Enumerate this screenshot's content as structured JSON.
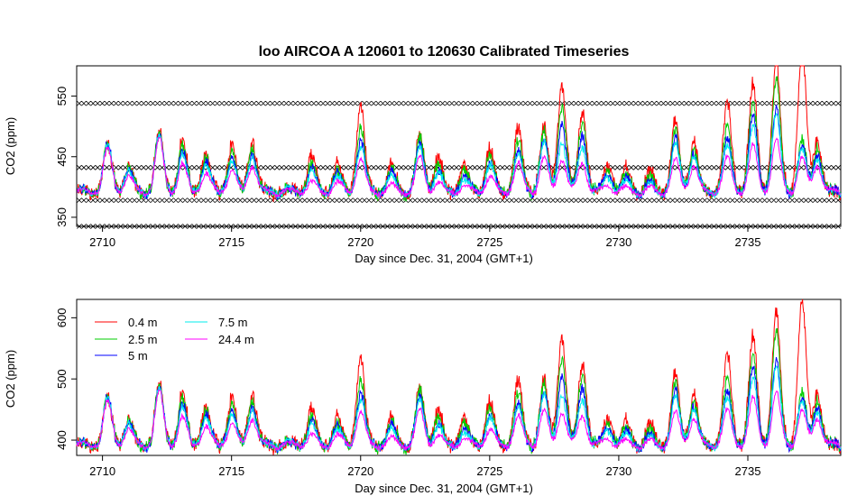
{
  "chart_data": [
    {
      "type": "line",
      "title": "loo   AIRCOA  A    120601  to  120630   Calibrated Timeseries",
      "xlabel": "Day since Dec. 31, 2004 (GMT+1)",
      "ylabel": "CO2 (ppm)",
      "xlim": [
        2709.0,
        2738.6
      ],
      "ylim": [
        335,
        600
      ],
      "xticks": [
        2710,
        2715,
        2720,
        2725,
        2730,
        2735
      ],
      "yticks": [
        350,
        450,
        550
      ],
      "ytick_labels": [
        "350",
        "450",
        "550"
      ],
      "calibration_levels": [
        335,
        378,
        432,
        538
      ],
      "series_colors": [
        "#ff0000",
        "#00cc00",
        "#0000ff",
        "#00eeee",
        "#ff00ff"
      ]
    },
    {
      "type": "line",
      "xlabel": "Day since Dec. 31, 2004 (GMT+1)",
      "ylabel": "CO2 (ppm)",
      "xlim": [
        2709.0,
        2738.6
      ],
      "ylim": [
        375,
        630
      ],
      "xticks": [
        2710,
        2715,
        2720,
        2725,
        2730,
        2735
      ],
      "yticks": [
        400,
        500,
        600
      ],
      "ytick_labels": [
        "400",
        "500",
        "600"
      ],
      "legend_position": "top-left",
      "series": [
        {
          "name": "0.4 m",
          "color": "#ff0000"
        },
        {
          "name": "2.5 m",
          "color": "#00cc00"
        },
        {
          "name": "5 m",
          "color": "#0000ff"
        },
        {
          "name": "7.5 m",
          "color": "#00eeee"
        },
        {
          "name": "24.4 m",
          "color": "#ff00ff"
        }
      ],
      "daily_peaks": [
        {
          "day": 2710.2,
          "values": [
            470,
            470,
            470,
            470,
            465
          ]
        },
        {
          "day": 2711.0,
          "values": [
            437,
            432,
            430,
            428,
            420
          ]
        },
        {
          "day": 2712.2,
          "values": [
            490,
            488,
            485,
            485,
            480
          ]
        },
        {
          "day": 2713.1,
          "values": [
            480,
            470,
            460,
            455,
            440
          ]
        },
        {
          "day": 2714.0,
          "values": [
            460,
            450,
            445,
            440,
            425
          ]
        },
        {
          "day": 2715.0,
          "values": [
            470,
            460,
            450,
            445,
            430
          ]
        },
        {
          "day": 2715.8,
          "values": [
            480,
            470,
            460,
            455,
            440
          ]
        },
        {
          "day": 2718.1,
          "values": [
            450,
            440,
            430,
            425,
            410
          ]
        },
        {
          "day": 2719.1,
          "values": [
            440,
            430,
            425,
            420,
            410
          ]
        },
        {
          "day": 2720.0,
          "values": [
            540,
            500,
            480,
            470,
            450
          ]
        },
        {
          "day": 2721.2,
          "values": [
            440,
            430,
            425,
            420,
            405
          ]
        },
        {
          "day": 2722.3,
          "values": [
            485,
            480,
            470,
            465,
            450
          ]
        },
        {
          "day": 2723.0,
          "values": [
            450,
            440,
            430,
            425,
            410
          ]
        },
        {
          "day": 2724.0,
          "values": [
            440,
            430,
            420,
            415,
            405
          ]
        },
        {
          "day": 2725.0,
          "values": [
            465,
            455,
            445,
            440,
            420
          ]
        },
        {
          "day": 2726.1,
          "values": [
            500,
            480,
            460,
            455,
            440
          ]
        },
        {
          "day": 2727.1,
          "values": [
            500,
            490,
            480,
            475,
            450
          ]
        },
        {
          "day": 2727.8,
          "values": [
            575,
            540,
            510,
            480,
            450
          ]
        },
        {
          "day": 2728.6,
          "values": [
            530,
            510,
            490,
            470,
            445
          ]
        },
        {
          "day": 2729.6,
          "values": [
            440,
            430,
            425,
            420,
            405
          ]
        },
        {
          "day": 2730.3,
          "values": [
            430,
            420,
            415,
            410,
            400
          ]
        },
        {
          "day": 2731.2,
          "values": [
            425,
            415,
            410,
            405,
            400
          ]
        },
        {
          "day": 2732.2,
          "values": [
            510,
            490,
            480,
            470,
            445
          ]
        },
        {
          "day": 2732.9,
          "values": [
            480,
            470,
            460,
            455,
            440
          ]
        },
        {
          "day": 2734.2,
          "values": [
            540,
            500,
            480,
            470,
            450
          ]
        },
        {
          "day": 2735.2,
          "values": [
            570,
            540,
            520,
            500,
            470
          ]
        },
        {
          "day": 2736.1,
          "values": [
            610,
            580,
            530,
            520,
            480
          ]
        },
        {
          "day": 2737.1,
          "values": [
            630,
            480,
            470,
            465,
            450
          ]
        },
        {
          "day": 2737.7,
          "values": [
            480,
            470,
            460,
            450,
            440
          ]
        }
      ]
    }
  ]
}
